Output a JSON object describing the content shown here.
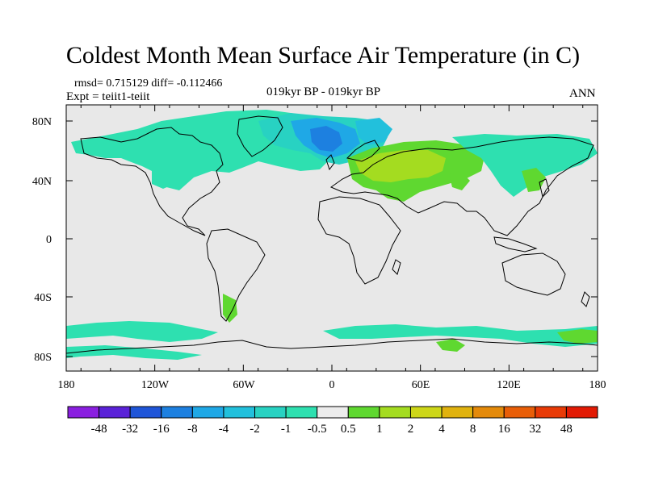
{
  "title": "Coldest Month Mean Surface Air Temperature (in C)",
  "stats_line": "rmsd= 0.715129 diff= -0.112466",
  "experiment_line": "Expt = teiit1-teiit",
  "period_line": "019kyr BP - 019kyr BP",
  "season_label": "ANN",
  "map": {
    "lon_ticks": [
      "180",
      "120W",
      "60W",
      "0",
      "60E",
      "120E",
      "180"
    ],
    "lat_ticks": [
      "80N",
      "40N",
      "0",
      "40S",
      "80S"
    ],
    "background_color": "#e8e8e8"
  },
  "colorbar": {
    "labels": [
      "-48",
      "-32",
      "-16",
      "-8",
      "-4",
      "-2",
      "-1",
      "-0.5",
      "0.5",
      "1",
      "2",
      "4",
      "8",
      "16",
      "32",
      "48"
    ],
    "colors": [
      "#8a1fe0",
      "#5a22d8",
      "#1f55d8",
      "#1d80e0",
      "#1fa8e6",
      "#22c0dc",
      "#28d2c2",
      "#2ee0b0",
      "#ececec",
      "#5fd830",
      "#a4dc20",
      "#cdd618",
      "#e0b20e",
      "#e48a0a",
      "#e85e08",
      "#e83a06",
      "#e21a04"
    ]
  }
}
